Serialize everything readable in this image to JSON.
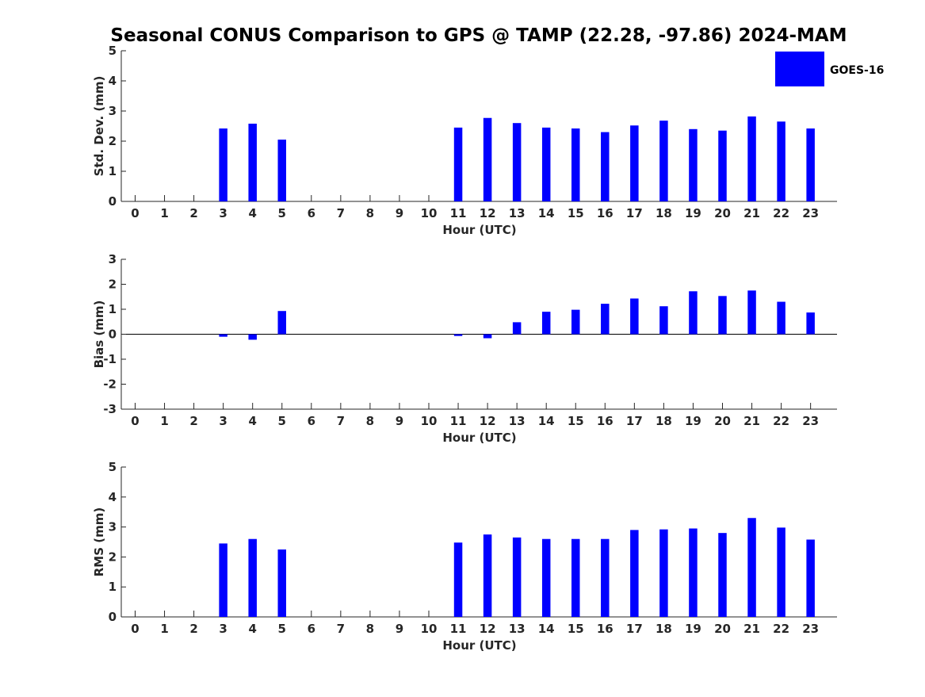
{
  "figure": {
    "title": "Seasonal CONUS Comparison to GPS @ TAMP (22.28, -97.86) 2024-MAM"
  },
  "legend": {
    "label": "GOES-16",
    "color": "#0000ff",
    "placement": "top-right"
  },
  "chart_data": [
    {
      "type": "bar",
      "title": "Seasonal CONUS Comparison to GPS @ TAMP (22.28, -97.86) 2024-MAM",
      "xlabel": "Hour (UTC)",
      "ylabel": "Std. Dev. (mm)",
      "ylim": [
        0,
        5
      ],
      "yticks": [
        0,
        1,
        2,
        3,
        4,
        5
      ],
      "categories": [
        "0",
        "1",
        "2",
        "3",
        "4",
        "5",
        "6",
        "7",
        "8",
        "9",
        "10",
        "11",
        "12",
        "13",
        "14",
        "15",
        "16",
        "17",
        "18",
        "19",
        "20",
        "21",
        "22",
        "23"
      ],
      "series": [
        {
          "name": "GOES-16",
          "values": [
            null,
            null,
            null,
            2.42,
            2.58,
            2.05,
            null,
            null,
            null,
            null,
            null,
            2.45,
            2.77,
            2.6,
            2.45,
            2.42,
            2.3,
            2.52,
            2.68,
            2.4,
            2.35,
            2.82,
            2.65,
            2.42
          ]
        }
      ],
      "grid": false
    },
    {
      "type": "bar",
      "xlabel": "Hour (UTC)",
      "ylabel": "Bias (mm)",
      "ylim": [
        -3,
        3
      ],
      "yticks": [
        -3,
        -2,
        -1,
        0,
        1,
        2,
        3
      ],
      "categories": [
        "0",
        "1",
        "2",
        "3",
        "4",
        "5",
        "6",
        "7",
        "8",
        "9",
        "10",
        "11",
        "12",
        "13",
        "14",
        "15",
        "16",
        "17",
        "18",
        "19",
        "20",
        "21",
        "22",
        "23"
      ],
      "series": [
        {
          "name": "GOES-16",
          "values": [
            null,
            null,
            null,
            -0.1,
            -0.22,
            0.93,
            null,
            null,
            null,
            null,
            null,
            -0.07,
            -0.16,
            0.48,
            0.9,
            0.98,
            1.22,
            1.43,
            1.12,
            1.72,
            1.53,
            1.75,
            1.3,
            0.87
          ]
        }
      ],
      "grid": false
    },
    {
      "type": "bar",
      "xlabel": "Hour (UTC)",
      "ylabel": "RMS (mm)",
      "ylim": [
        0,
        5
      ],
      "yticks": [
        0,
        1,
        2,
        3,
        4,
        5
      ],
      "categories": [
        "0",
        "1",
        "2",
        "3",
        "4",
        "5",
        "6",
        "7",
        "8",
        "9",
        "10",
        "11",
        "12",
        "13",
        "14",
        "15",
        "16",
        "17",
        "18",
        "19",
        "20",
        "21",
        "22",
        "23"
      ],
      "series": [
        {
          "name": "GOES-16",
          "values": [
            null,
            null,
            null,
            2.45,
            2.6,
            2.25,
            null,
            null,
            null,
            null,
            null,
            2.48,
            2.75,
            2.65,
            2.6,
            2.6,
            2.6,
            2.9,
            2.92,
            2.95,
            2.8,
            3.3,
            2.98,
            2.58
          ]
        }
      ],
      "grid": false
    }
  ]
}
